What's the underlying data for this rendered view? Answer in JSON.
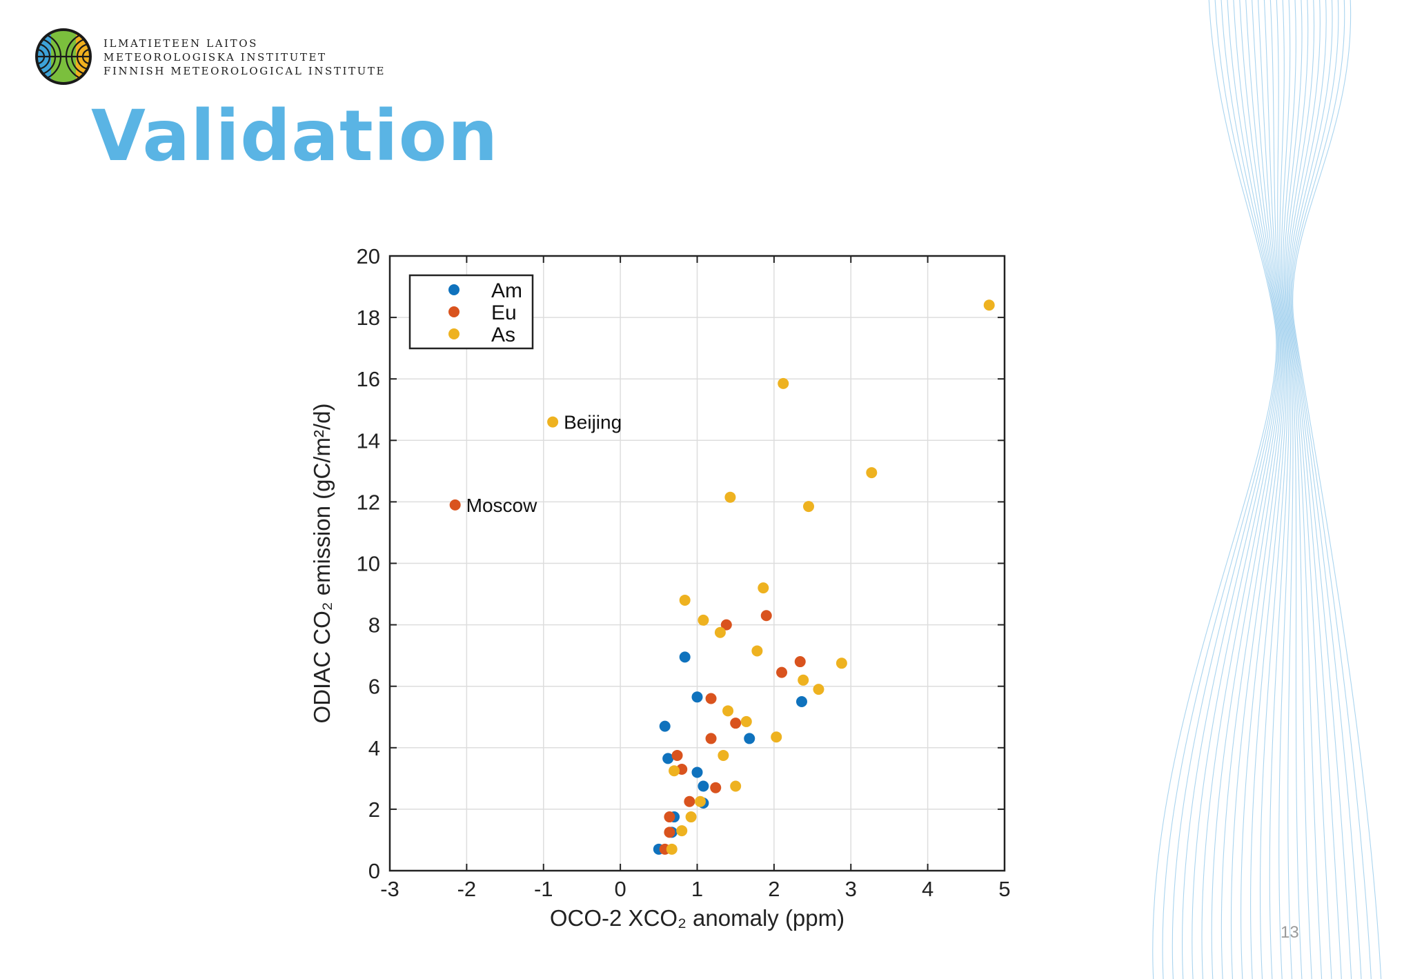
{
  "header": {
    "org_lines": [
      "ILMATIETEEN LAITOS",
      "METEOROLOGISKA INSTITUTET",
      "FINNISH METEOROLOGICAL INSTITUTE"
    ],
    "logo_name": "fmi-logo"
  },
  "slide": {
    "title": "Validation",
    "page_number": "13"
  },
  "colors": {
    "title": "#5ab4e4",
    "am": "#0f72bd",
    "eu": "#d9531e",
    "as": "#eeb220",
    "decor_lines": "#8cc6ea"
  },
  "chart_data": {
    "type": "scatter",
    "xlabel": "OCO-2 XCO₂ anomaly (ppm)",
    "ylabel": "ODIAC CO₂ emission (gC/m²/d)",
    "xlim": [
      -3,
      5
    ],
    "ylim": [
      0,
      20
    ],
    "xticks": [
      -3,
      -2,
      -1,
      0,
      1,
      2,
      3,
      4,
      5
    ],
    "yticks": [
      0,
      2,
      4,
      6,
      8,
      10,
      12,
      14,
      16,
      18,
      20
    ],
    "grid": true,
    "legend_position": "top-left",
    "series": [
      {
        "name": "Am",
        "color": "#0f72bd",
        "points": [
          [
            0.5,
            0.7
          ],
          [
            0.7,
            1.75
          ],
          [
            0.67,
            1.25
          ],
          [
            1.08,
            2.2
          ],
          [
            1.08,
            2.75
          ],
          [
            1.0,
            3.2
          ],
          [
            0.62,
            3.65
          ],
          [
            0.58,
            4.7
          ],
          [
            1.0,
            5.65
          ],
          [
            0.84,
            6.95
          ],
          [
            1.68,
            4.3
          ],
          [
            2.36,
            5.5
          ]
        ]
      },
      {
        "name": "Eu",
        "color": "#d9531e",
        "points": [
          [
            0.58,
            0.7
          ],
          [
            0.64,
            1.25
          ],
          [
            0.64,
            1.75
          ],
          [
            0.9,
            2.25
          ],
          [
            1.24,
            2.7
          ],
          [
            0.8,
            3.3
          ],
          [
            0.74,
            3.75
          ],
          [
            1.18,
            4.3
          ],
          [
            1.5,
            4.8
          ],
          [
            1.18,
            5.6
          ],
          [
            2.1,
            6.45
          ],
          [
            2.34,
            6.8
          ],
          [
            1.38,
            8.0
          ],
          [
            1.9,
            8.3
          ],
          [
            -2.15,
            11.9
          ]
        ]
      },
      {
        "name": "As",
        "color": "#eeb220",
        "points": [
          [
            0.67,
            0.7
          ],
          [
            0.8,
            1.3
          ],
          [
            0.92,
            1.75
          ],
          [
            1.04,
            2.25
          ],
          [
            1.5,
            2.75
          ],
          [
            0.7,
            3.25
          ],
          [
            1.34,
            3.75
          ],
          [
            2.03,
            4.35
          ],
          [
            1.64,
            4.85
          ],
          [
            1.4,
            5.2
          ],
          [
            2.38,
            6.2
          ],
          [
            2.58,
            5.9
          ],
          [
            2.88,
            6.75
          ],
          [
            1.78,
            7.15
          ],
          [
            1.3,
            7.75
          ],
          [
            1.08,
            8.15
          ],
          [
            0.84,
            8.8
          ],
          [
            1.86,
            9.2
          ],
          [
            1.43,
            12.15
          ],
          [
            2.45,
            11.85
          ],
          [
            3.27,
            12.95
          ],
          [
            2.12,
            15.85
          ],
          [
            4.8,
            18.4
          ],
          [
            -0.88,
            14.6
          ]
        ]
      }
    ],
    "annotations": [
      {
        "text": "Beijing",
        "x": -0.88,
        "y": 14.6
      },
      {
        "text": "Moscow",
        "x": -2.15,
        "y": 11.9
      }
    ]
  }
}
